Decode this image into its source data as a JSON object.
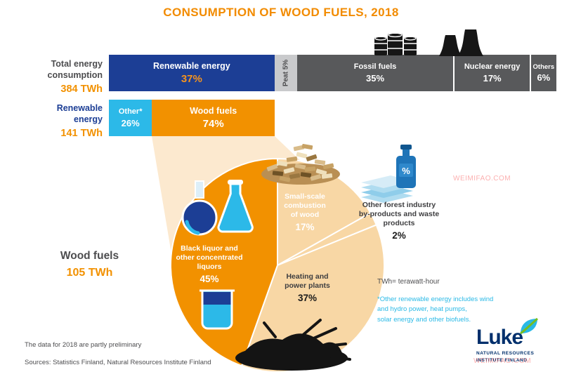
{
  "title": "CONSUMPTION OF WOOD FUELS, 2018",
  "total_bar": {
    "label": [
      "Total energy",
      "consumption"
    ],
    "value": "384 TWh",
    "segments": [
      {
        "name": "Renewable energy",
        "pct": "37%"
      },
      {
        "name": "Peat",
        "pct": "5%"
      },
      {
        "name": "Fossil fuels",
        "pct": "35%"
      },
      {
        "name": "Nuclear energy",
        "pct": "17%"
      },
      {
        "name": "Others",
        "pct": "6%"
      }
    ]
  },
  "renewable_bar": {
    "label": [
      "Renewable",
      "energy"
    ],
    "value": "141 TWh",
    "segments": [
      {
        "name": "Other*",
        "pct": "26%"
      },
      {
        "name": "Wood fuels",
        "pct": "74%"
      }
    ]
  },
  "wood_pie": {
    "label": "Wood fuels",
    "value": "105 TWh",
    "labels": {
      "small_scale": {
        "lines": [
          "Small-scale",
          "combustion",
          "of wood"
        ],
        "pct": "17%"
      },
      "other_forest": {
        "lines": [
          "Other forest industry",
          "by-products and waste",
          "products"
        ],
        "pct": "2%"
      },
      "black_liquor": {
        "lines": [
          "Black liquor and",
          "other concentrated",
          "liquors"
        ],
        "pct": "45%"
      },
      "heating": {
        "lines": [
          "Heating and",
          "power plants"
        ],
        "pct": "37%"
      }
    }
  },
  "icons": {
    "percent": "%"
  },
  "notes": {
    "twh": "TWh= terawatt-hour",
    "other_renewable": [
      "*Other renewable energy includes wind",
      "and hydro power, heat pumps,",
      "solar energy and other biofuels."
    ]
  },
  "footer": {
    "preliminary": "The data for 2018 are partly preliminary",
    "sources": "Sources: Statistics Finland, Natural Resources Institute Finland"
  },
  "logo": {
    "name": "Luke",
    "subtitle": [
      "NATURAL RESOURCES",
      "INSTITUTE FINLAND"
    ]
  },
  "watermark": "WEIMIFAO.COM",
  "colors": {
    "orange": "#F29100",
    "dark_blue": "#1C3E95",
    "cyan": "#29B9E6",
    "dark_gray": "#58595B",
    "light_gray": "#C9CACC",
    "peach": "#F8D7A5",
    "funnel": "#FCE9CF"
  },
  "chart_data": [
    {
      "type": "bar",
      "title": "Total energy consumption",
      "total": "384 TWh",
      "unit": "percent",
      "categories": [
        "Renewable energy",
        "Peat",
        "Fossil fuels",
        "Nuclear energy",
        "Others"
      ],
      "values": [
        37,
        5,
        35,
        17,
        6
      ]
    },
    {
      "type": "bar",
      "title": "Renewable energy",
      "total": "141 TWh",
      "unit": "percent",
      "categories": [
        "Other renewable energy",
        "Wood fuels"
      ],
      "values": [
        26,
        74
      ]
    },
    {
      "type": "pie",
      "title": "Wood fuels",
      "total": "105 TWh",
      "unit": "percent",
      "categories": [
        "Small-scale combustion of wood",
        "Other forest industry by-products and waste products",
        "Heating and power plants",
        "Black liquor and other concentrated liquors"
      ],
      "values": [
        17,
        2,
        37,
        45
      ],
      "slice_colors": [
        "#F8D7A5",
        "#F8D7A5",
        "#F8D7A5",
        "#F29100"
      ]
    }
  ]
}
